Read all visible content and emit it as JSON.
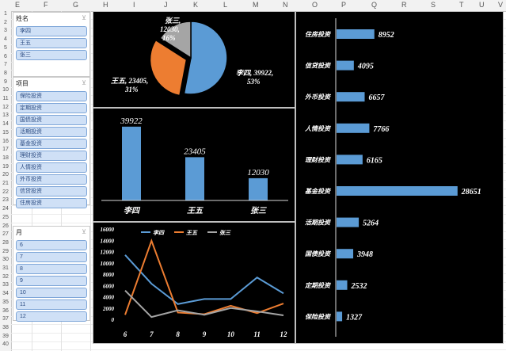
{
  "columns": [
    "E",
    "F",
    "G",
    "H",
    "I",
    "J",
    "K",
    "L",
    "M",
    "N",
    "O",
    "P",
    "Q",
    "R",
    "S",
    "T",
    "U",
    "V"
  ],
  "rows": [
    "1",
    "2",
    "3",
    "4",
    "5",
    "6",
    "7",
    "8",
    "9",
    "10",
    "11",
    "12",
    "13",
    "14",
    "15",
    "16",
    "17",
    "18",
    "19",
    "20",
    "21",
    "22",
    "23",
    "24",
    "25",
    "26",
    "27",
    "28",
    "29",
    "30",
    "31",
    "32",
    "33",
    "34",
    "35",
    "36",
    "37",
    "38",
    "39",
    "40"
  ],
  "slicers": {
    "name": {
      "title": "姓名",
      "items": [
        "李四",
        "王五",
        "张三"
      ]
    },
    "project": {
      "title": "项目",
      "items": [
        "保险投资",
        "定期投资",
        "国债投资",
        "活期投资",
        "基金投资",
        "理财投资",
        "人情投资",
        "外币投资",
        "信贷投资",
        "住房投资"
      ]
    },
    "month": {
      "title": "月",
      "items": [
        "6",
        "7",
        "8",
        "9",
        "10",
        "11",
        "12"
      ]
    }
  },
  "chart_data": [
    {
      "type": "pie",
      "slices": [
        {
          "label": "李四",
          "value": 39922,
          "percent": "53%",
          "color": "#5b9bd5",
          "text": "李四, 39922,",
          "pct_text": "53%"
        },
        {
          "label": "王五",
          "value": 23405,
          "percent": "31%",
          "color": "#ed7d31",
          "text": "王五, 23405,",
          "pct_text": "31%"
        },
        {
          "label": "张三",
          "value": 12030,
          "percent": "16%",
          "color": "#a5a5a5",
          "text": "张三,",
          "text2": "12030,",
          "pct_text": "16%"
        }
      ]
    },
    {
      "type": "bar",
      "categories": [
        "李四",
        "王五",
        "张三"
      ],
      "values": [
        39922,
        23405,
        12030
      ],
      "labels": [
        "39922",
        "23405",
        "12030"
      ],
      "color": "#5b9bd5",
      "ylim": [
        0,
        42000
      ]
    },
    {
      "type": "line",
      "x": [
        "6",
        "7",
        "8",
        "9",
        "10",
        "11",
        "12"
      ],
      "ylim": [
        0,
        16000
      ],
      "yticks": [
        "0",
        "2000",
        "4000",
        "6000",
        "8000",
        "10000",
        "12000",
        "14000",
        "16000"
      ],
      "series": [
        {
          "name": "李四",
          "color": "#5b9bd5",
          "values": [
            11400,
            6300,
            2700,
            3600,
            3600,
            7400,
            4600
          ]
        },
        {
          "name": "王五",
          "color": "#ed7d31",
          "values": [
            800,
            13900,
            1200,
            900,
            2400,
            1100,
            2800
          ]
        },
        {
          "name": "张三",
          "color": "#a5a5a5",
          "values": [
            5100,
            400,
            1600,
            800,
            2000,
            1400,
            700
          ]
        }
      ]
    },
    {
      "type": "bar",
      "orientation": "horizontal",
      "categories": [
        "住房投资",
        "信贷投资",
        "外币投资",
        "人情投资",
        "理财投资",
        "基金投资",
        "活期投资",
        "国债投资",
        "定期投资",
        "保险投资"
      ],
      "values": [
        8952,
        4095,
        6657,
        7766,
        6165,
        28651,
        5264,
        3948,
        2532,
        1327
      ],
      "labels": [
        "8952",
        "4095",
        "6657",
        "7766",
        "6165",
        "28651",
        "5264",
        "3948",
        "2532",
        "1327"
      ],
      "color": "#5b9bd5",
      "xlim": [
        0,
        30000
      ]
    }
  ]
}
